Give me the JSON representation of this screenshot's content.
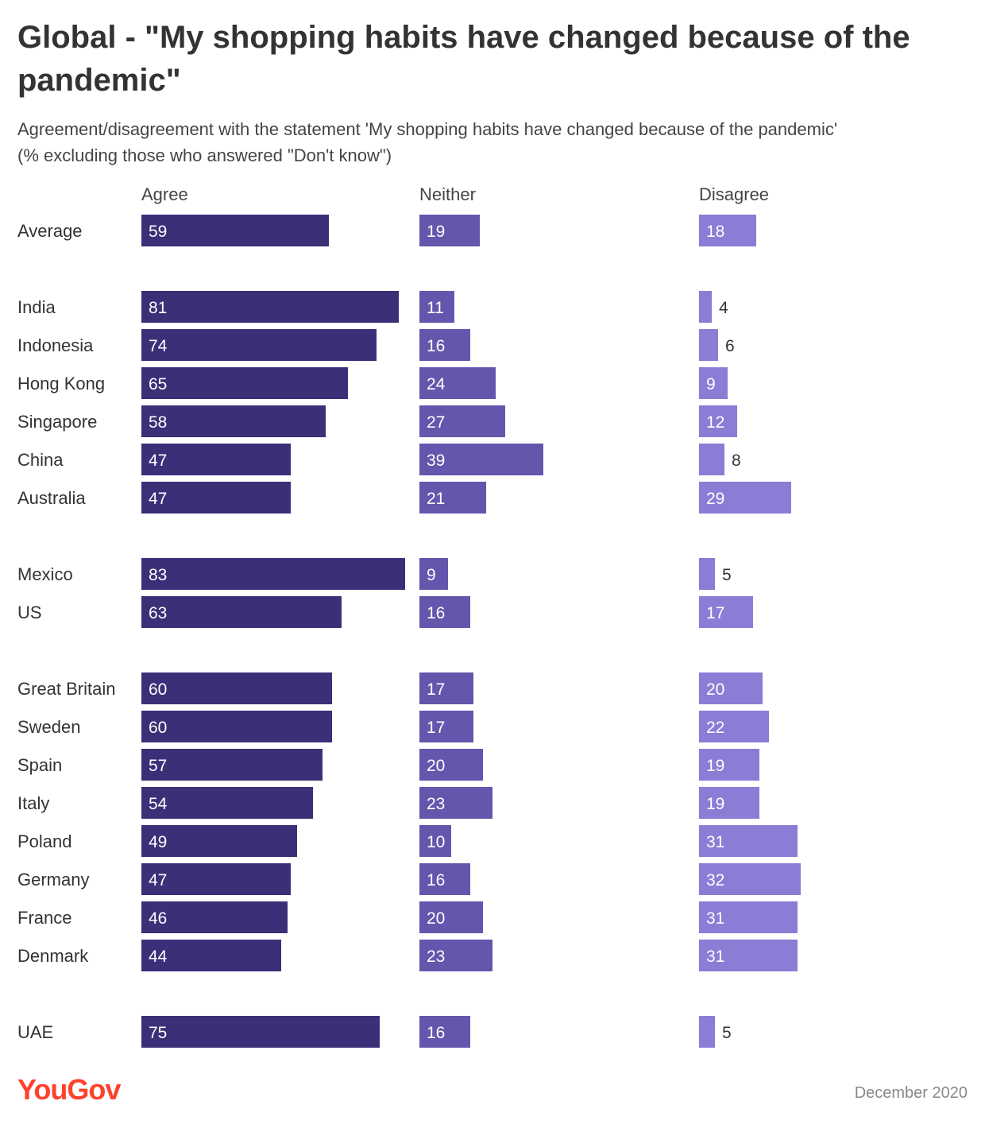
{
  "title": "Global - \"My shopping habits have changed because of the pandemic\"",
  "subtitle_line1": "Agreement/disagreement with the statement 'My shopping habits have changed because of the pandemic'",
  "subtitle_line2": "(% excluding those who answered \"Don't know\")",
  "brand": "YouGov",
  "date": "December 2020",
  "colors": {
    "agree": "#3a3078",
    "neither": "#6555ad",
    "disagree": "#8a7dd6",
    "label_inside": "#ffffff",
    "label_outside": "#333333"
  },
  "chart_data": {
    "type": "bar",
    "orientation": "horizontal",
    "series": [
      {
        "name": "Agree",
        "values": [
          59,
          81,
          74,
          65,
          58,
          47,
          47,
          83,
          63,
          60,
          60,
          57,
          54,
          49,
          47,
          46,
          44,
          75
        ]
      },
      {
        "name": "Neither",
        "values": [
          19,
          11,
          16,
          24,
          27,
          39,
          21,
          9,
          16,
          17,
          17,
          20,
          23,
          10,
          16,
          20,
          23,
          16
        ]
      },
      {
        "name": "Disagree",
        "values": [
          18,
          4,
          6,
          9,
          12,
          8,
          29,
          5,
          17,
          20,
          22,
          19,
          19,
          31,
          32,
          31,
          31,
          5
        ]
      }
    ],
    "categories": [
      "Average",
      "India",
      "Indonesia",
      "Hong Kong",
      "Singapore",
      "China",
      "Australia",
      "Mexico",
      "US",
      "Great Britain",
      "Sweden",
      "Spain",
      "Italy",
      "Poland",
      "Germany",
      "France",
      "Denmark",
      "UAE"
    ],
    "groups": [
      [
        "Average"
      ],
      [
        "India",
        "Indonesia",
        "Hong Kong",
        "Singapore",
        "China",
        "Australia"
      ],
      [
        "Mexico",
        "US"
      ],
      [
        "Great Britain",
        "Sweden",
        "Spain",
        "Italy",
        "Poland",
        "Germany",
        "France",
        "Denmark"
      ],
      [
        "UAE"
      ]
    ],
    "unit": "%",
    "grid": false,
    "legend": "column headers"
  }
}
